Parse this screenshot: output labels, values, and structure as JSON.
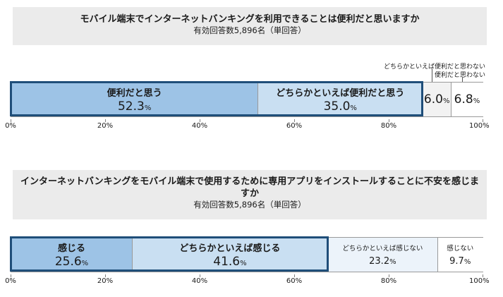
{
  "chart_data": [
    {
      "type": "bar",
      "title": "モバイル端末でインターネットバンキングを利用できることは便利だと思いますか",
      "subtitle": "有効回答数5,896名（単回答）",
      "categories": [
        "便利だと思う",
        "どちらかといえば便利だと思う",
        "どちらかといえば便利だと思わない",
        "便利だと思わない"
      ],
      "values": [
        52.3,
        35.0,
        6.0,
        6.8
      ],
      "value_labels": [
        "52.3",
        "35.0",
        "6.0",
        "6.8"
      ],
      "unit": "%",
      "xlim": [
        0,
        100
      ],
      "xticks": [
        "0%",
        "20%",
        "40%",
        "60%",
        "80%",
        "100%"
      ],
      "colors": [
        "#9dc3e6",
        "#c9dff2",
        "#f2f2f2",
        "#ffffff"
      ],
      "highlight_groups": [
        [
          0,
          1
        ]
      ]
    },
    {
      "type": "bar",
      "title": "インターネットバンキングをモバイル端末で使用するために専用アプリをインストールすることに不安を感じますか",
      "subtitle": "有効回答数5,896名（単回答）",
      "categories": [
        "感じる",
        "どちらかといえば感じる",
        "どちらかといえば感じない",
        "感じない"
      ],
      "values": [
        25.6,
        41.6,
        23.2,
        9.7
      ],
      "value_labels": [
        "25.6",
        "41.6",
        "23.2",
        "9.7"
      ],
      "unit": "%",
      "xlim": [
        0,
        100
      ],
      "xticks": [
        "0%",
        "20%",
        "40%",
        "60%",
        "80%",
        "100%"
      ],
      "colors": [
        "#9dc3e6",
        "#c9dff2",
        "#ecf3fa",
        "#ffffff"
      ],
      "highlight_groups": [
        [
          0,
          1
        ]
      ]
    }
  ]
}
